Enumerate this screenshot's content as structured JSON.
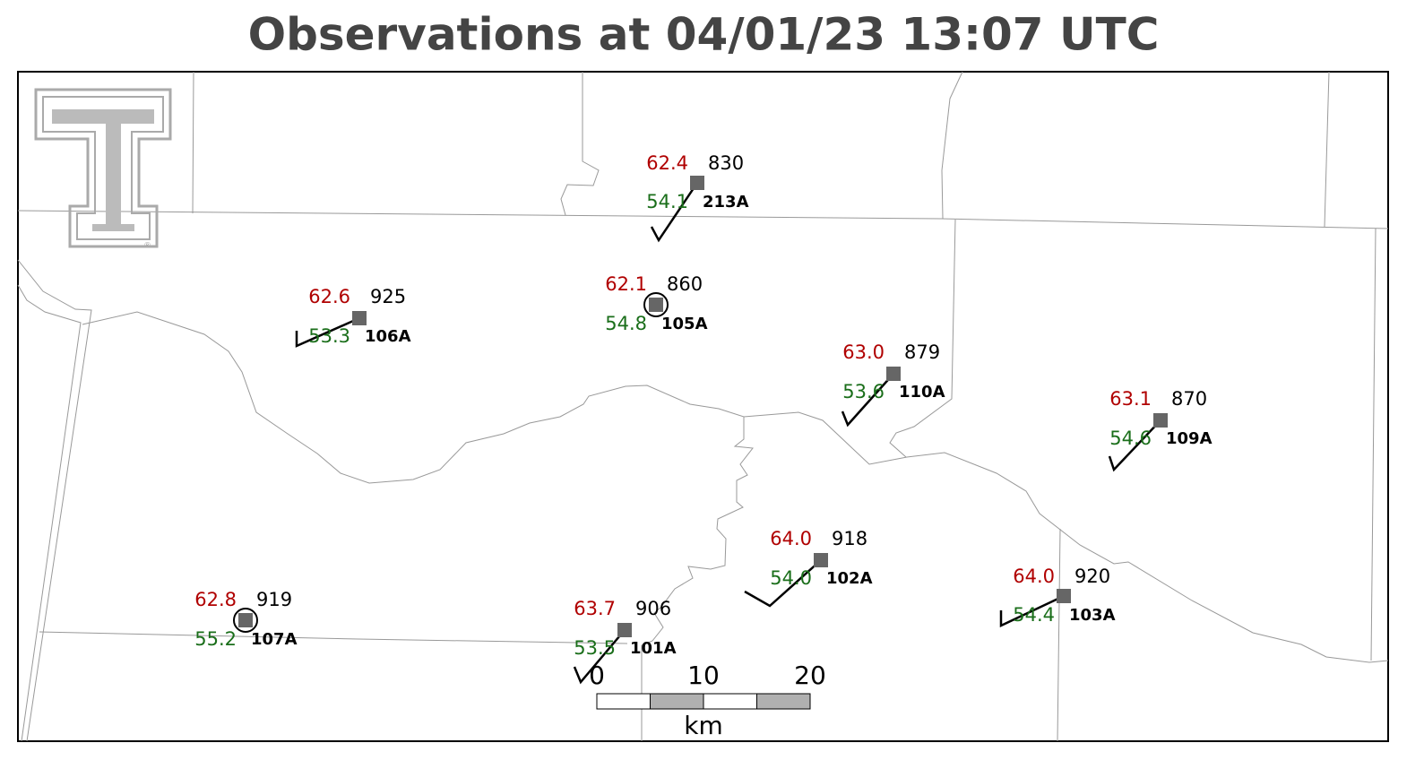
{
  "title": "Observations at 04/01/23 13:07 UTC",
  "logo_mark": "®",
  "stations": [
    {
      "id": "213A",
      "temperature": "62.4",
      "dewpoint": "54.1",
      "pressure": "830"
    },
    {
      "id": "105A",
      "temperature": "62.1",
      "dewpoint": "54.8",
      "pressure": "860"
    },
    {
      "id": "106A",
      "temperature": "62.6",
      "dewpoint": "53.3",
      "pressure": "925"
    },
    {
      "id": "110A",
      "temperature": "63.0",
      "dewpoint": "53.6",
      "pressure": "879"
    },
    {
      "id": "109A",
      "temperature": "63.1",
      "dewpoint": "54.6",
      "pressure": "870"
    },
    {
      "id": "102A",
      "temperature": "64.0",
      "dewpoint": "54.0",
      "pressure": "918"
    },
    {
      "id": "103A",
      "temperature": "64.0",
      "dewpoint": "54.4",
      "pressure": "920"
    },
    {
      "id": "101A",
      "temperature": "63.7",
      "dewpoint": "53.5",
      "pressure": "906"
    },
    {
      "id": "107A",
      "temperature": "62.8",
      "dewpoint": "55.2",
      "pressure": "919"
    }
  ],
  "scale_bar": {
    "labels": [
      "0",
      "10",
      "20"
    ],
    "unit": "km"
  }
}
